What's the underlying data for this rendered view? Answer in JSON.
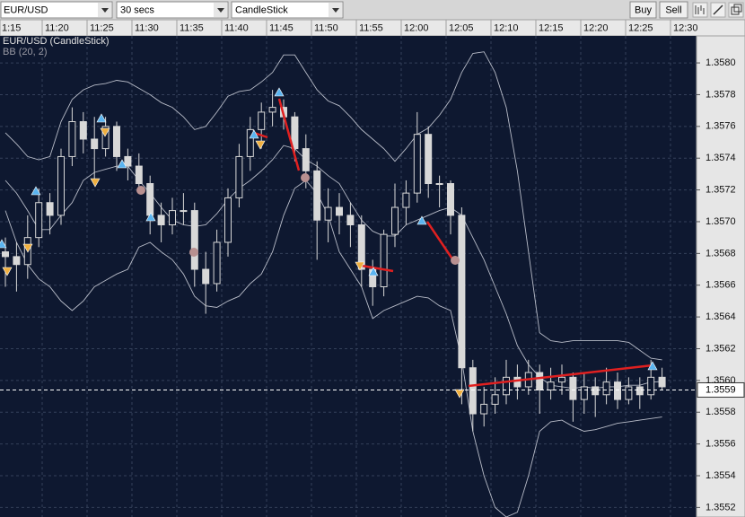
{
  "toolbar": {
    "symbol": "EUR/USD",
    "interval": "30 secs",
    "chart_type": "CandleStick",
    "buy": "Buy",
    "sell": "Sell"
  },
  "chart_data": {
    "type": "candlestick",
    "title": "EUR/USD (CandleStick)",
    "subtitle": "BB (20, 2)",
    "xticks": [
      "1:15",
      "11:20",
      "11:25",
      "11:30",
      "11:35",
      "11:40",
      "11:45",
      "11:50",
      "11:55",
      "12:00",
      "12:05",
      "12:10",
      "12:15",
      "12:20",
      "12:25",
      "12:30"
    ],
    "ylim": [
      1.35514,
      1.35817
    ],
    "yticks": [
      1.3552,
      1.3554,
      1.3556,
      1.3558,
      {
        "value": 1.356,
        "label": "1.3560"
      },
      1.3562,
      1.3564,
      1.3566,
      1.3568,
      {
        "value": 1.357,
        "label": "1.3570"
      },
      1.3572,
      1.3574,
      1.3576,
      1.3578,
      {
        "value": 1.358,
        "label": "1.3580"
      }
    ],
    "grid": true,
    "last": {
      "value": 1.35594,
      "label": "1.3559"
    },
    "candle_color": "#d8d8d8",
    "band_color": "#b8bcc8",
    "open": [
      1.35681,
      1.35678,
      1.35673,
      1.3569,
      1.35712,
      1.35704,
      1.35741,
      1.35763,
      1.35752,
      1.35746,
      1.3576,
      1.35741,
      1.35735,
      1.35724,
      1.35704,
      1.35698,
      1.35707,
      1.35707,
      1.3567,
      1.35661,
      1.35687,
      1.35715,
      1.35741,
      1.35758,
      1.35769,
      1.35772,
      1.35766,
      1.35746,
      1.35732,
      1.35701,
      1.35709,
      1.35704,
      1.35698,
      1.3567,
      1.35659,
      1.35692,
      1.35709,
      1.35718,
      1.35755,
      1.35724,
      1.35724,
      1.35704,
      1.35608,
      1.35579,
      1.35585,
      1.35591,
      1.35602,
      1.35596,
      1.35605,
      1.35594,
      1.35599,
      1.35602,
      1.35588,
      1.35596,
      1.35591,
      1.35599,
      1.35588,
      1.35596,
      1.35591,
      1.35602
    ],
    "high": [
      1.3569,
      1.35687,
      1.35704,
      1.35721,
      1.35718,
      1.35746,
      1.35772,
      1.35769,
      1.35766,
      1.35766,
      1.35763,
      1.35746,
      1.35743,
      1.35729,
      1.35712,
      1.35715,
      1.35718,
      1.35712,
      1.35681,
      1.35695,
      1.35721,
      1.35749,
      1.35766,
      1.35775,
      1.35783,
      1.35777,
      1.35769,
      1.35755,
      1.35738,
      1.35721,
      1.35718,
      1.35712,
      1.35704,
      1.35676,
      1.35695,
      1.35724,
      1.35726,
      1.35769,
      1.3576,
      1.35729,
      1.35726,
      1.35709,
      1.35613,
      1.35596,
      1.35602,
      1.35613,
      1.3561,
      1.35613,
      1.3561,
      1.35608,
      1.3561,
      1.35605,
      1.35605,
      1.35602,
      1.35608,
      1.35605,
      1.35602,
      1.35602,
      1.35613,
      1.35608
    ],
    "low": [
      1.35659,
      1.35656,
      1.35664,
      1.35684,
      1.35692,
      1.35698,
      1.35735,
      1.35743,
      1.35726,
      1.35741,
      1.35732,
      1.35726,
      1.35718,
      1.35692,
      1.35687,
      1.35692,
      1.35698,
      1.35659,
      1.35642,
      1.35656,
      1.35678,
      1.35709,
      1.35732,
      1.35746,
      1.3576,
      1.35758,
      1.35738,
      1.35721,
      1.35676,
      1.35687,
      1.35692,
      1.35684,
      1.35659,
      1.35647,
      1.35653,
      1.35684,
      1.35698,
      1.35712,
      1.35715,
      1.35709,
      1.35692,
      1.35585,
      1.35568,
      1.35571,
      1.35579,
      1.35585,
      1.35588,
      1.35591,
      1.35579,
      1.35588,
      1.35591,
      1.35574,
      1.35579,
      1.35577,
      1.35585,
      1.35582,
      1.35585,
      1.35582,
      1.35588,
      1.35594
    ],
    "close": [
      1.35678,
      1.35673,
      1.3569,
      1.35712,
      1.35704,
      1.35741,
      1.35763,
      1.35752,
      1.35746,
      1.3576,
      1.35741,
      1.35735,
      1.35724,
      1.35704,
      1.35698,
      1.35707,
      1.35707,
      1.3567,
      1.35661,
      1.35687,
      1.35715,
      1.35741,
      1.35758,
      1.35769,
      1.35772,
      1.35766,
      1.35746,
      1.35732,
      1.35701,
      1.35709,
      1.35704,
      1.35698,
      1.3567,
      1.35659,
      1.35692,
      1.35709,
      1.35718,
      1.35755,
      1.35724,
      1.35724,
      1.35704,
      1.35608,
      1.35579,
      1.35585,
      1.35591,
      1.35602,
      1.35596,
      1.35605,
      1.35594,
      1.35599,
      1.35602,
      1.35588,
      1.35596,
      1.35591,
      1.35599,
      1.35588,
      1.35596,
      1.35591,
      1.35602,
      1.35596
    ],
    "bands": {
      "upper": [
        1.35756,
        1.35749,
        1.35741,
        1.35739,
        1.35741,
        1.35763,
        1.35777,
        1.35783,
        1.35786,
        1.35787,
        1.35789,
        1.35788,
        1.35784,
        1.3578,
        1.35775,
        1.35772,
        1.35766,
        1.35758,
        1.3576,
        1.35769,
        1.35779,
        1.35782,
        1.35783,
        1.35788,
        1.35794,
        1.35805,
        1.35805,
        1.35794,
        1.35783,
        1.35776,
        1.35773,
        1.35766,
        1.35758,
        1.35752,
        1.35746,
        1.35738,
        1.35746,
        1.35755,
        1.35759,
        1.35767,
        1.35777,
        1.35794,
        1.35806,
        1.35807,
        1.35794,
        1.35772,
        1.35732,
        1.35681,
        1.3563,
        1.35625,
        1.35624,
        1.35625,
        1.35625,
        1.35625,
        1.35625,
        1.35625,
        1.35624,
        1.35619,
        1.35614,
        1.35613
      ],
      "middle": [
        1.35726,
        1.35718,
        1.35707,
        1.35695,
        1.35695,
        1.35704,
        1.35712,
        1.35726,
        1.35731,
        1.35733,
        1.35735,
        1.35735,
        1.35726,
        1.35718,
        1.35709,
        1.35701,
        1.35698,
        1.35697,
        1.35698,
        1.35705,
        1.35714,
        1.35721,
        1.35726,
        1.35732,
        1.35739,
        1.35748,
        1.35746,
        1.35739,
        1.35735,
        1.35729,
        1.35724,
        1.35712,
        1.35701,
        1.35694,
        1.35691,
        1.35691,
        1.35698,
        1.35701,
        1.35704,
        1.35707,
        1.35709,
        1.35704,
        1.3569,
        1.35676,
        1.35659,
        1.35642,
        1.35622,
        1.3561,
        1.35602,
        1.35597,
        1.35596,
        1.35595,
        1.35596,
        1.35595,
        1.35596,
        1.35596,
        1.35597,
        1.35597,
        1.35599,
        1.35599
      ],
      "lower": [
        1.35707,
        1.35687,
        1.35673,
        1.35664,
        1.35659,
        1.3565,
        1.35644,
        1.3565,
        1.35659,
        1.35663,
        1.35667,
        1.3567,
        1.35684,
        1.35687,
        1.35681,
        1.35676,
        1.35667,
        1.35653,
        1.35647,
        1.35646,
        1.3565,
        1.35653,
        1.35661,
        1.35667,
        1.35681,
        1.35704,
        1.35721,
        1.35726,
        1.35718,
        1.35704,
        1.35681,
        1.3567,
        1.35659,
        1.35639,
        1.35644,
        1.35647,
        1.3565,
        1.35653,
        1.35652,
        1.35647,
        1.35644,
        1.35613,
        1.35568,
        1.3554,
        1.3552,
        1.35514,
        1.35517,
        1.3554,
        1.35568,
        1.35574,
        1.35575,
        1.35571,
        1.35568,
        1.35569,
        1.35571,
        1.35573,
        1.35574,
        1.35575,
        1.35576,
        1.35577
      ]
    }
  }
}
